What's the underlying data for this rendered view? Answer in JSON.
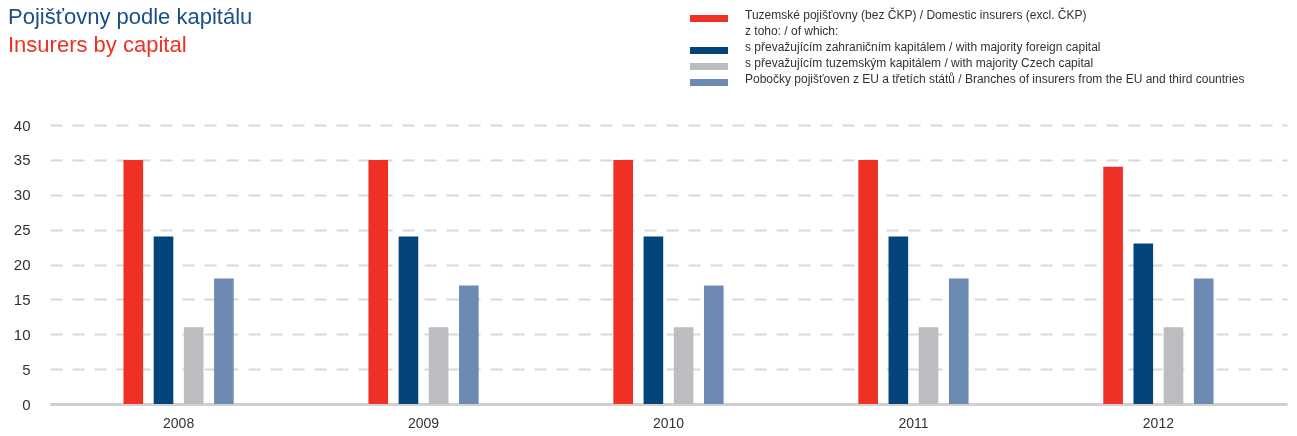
{
  "chart_data": {
    "type": "bar",
    "title": "Pojišťovny podle kapitálu",
    "subtitle": "Insurers by capital",
    "categories": [
      "2008",
      "2009",
      "2010",
      "2011",
      "2012"
    ],
    "series": [
      {
        "name": "Tuzemské pojišťovny (bez ČKP) / Domestic insurers (excl. ČKP)",
        "color": "#ee3124",
        "values": [
          35,
          35,
          35,
          35,
          34
        ]
      },
      {
        "name": "s převažujícím zahraničním kapitálem / with majority foreign capital",
        "color": "#03457a",
        "values": [
          24,
          24,
          24,
          24,
          23
        ]
      },
      {
        "name": "s převažujícím tuzemským kapitálem / with majority Czech capital",
        "color": "#bcbdc0",
        "values": [
          11,
          11,
          11,
          11,
          11
        ]
      },
      {
        "name": "Pobočky pojišťoven z EU a třetích států / Branches of insurers from the EU and third countries",
        "color": "#6d8ab3",
        "values": [
          18,
          17,
          17,
          18,
          18
        ]
      }
    ],
    "annotations": [
      "z toho: / of which:"
    ],
    "ylim": [
      0,
      40
    ],
    "yticks": [
      0,
      5,
      10,
      15,
      20,
      25,
      30,
      35,
      40
    ],
    "grid": "y",
    "legend": "top right"
  }
}
